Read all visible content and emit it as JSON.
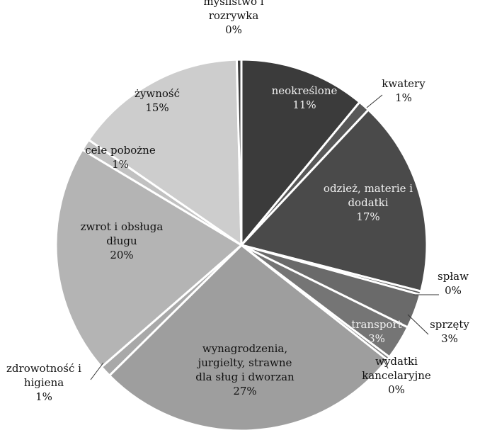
{
  "chart_data": {
    "type": "pie",
    "title": "",
    "legend": "none",
    "slices": [
      {
        "name": "neokreślone",
        "label_lines": [
          "neokreślone"
        ],
        "value": 11,
        "value_label": "11%",
        "color": "#3b3b3b",
        "text_tone": "light"
      },
      {
        "name": "kwatery",
        "label_lines": [
          "kwatery"
        ],
        "value": 1,
        "value_label": "1%",
        "color": "#585858",
        "text_tone": "dark"
      },
      {
        "name": "odzież, materie i dodatki",
        "label_lines": [
          "odzież, materie i",
          "dodatki"
        ],
        "value": 17,
        "value_label": "17%",
        "color": "#4a4a4a",
        "text_tone": "light"
      },
      {
        "name": "spław",
        "label_lines": [
          "spław"
        ],
        "value": 0.3,
        "value_label": "0%",
        "color": "#5e5e5e",
        "text_tone": "dark"
      },
      {
        "name": "sprzęty",
        "label_lines": [
          "sprzęty"
        ],
        "value": 3,
        "value_label": "3%",
        "color": "#6a6a6a",
        "text_tone": "dark"
      },
      {
        "name": "transport",
        "label_lines": [
          "transport"
        ],
        "value": 3,
        "value_label": "3%",
        "color": "#757575",
        "text_tone": "light"
      },
      {
        "name": "wydatki kancelaryjne",
        "label_lines": [
          "wydatki",
          "kancelaryjne"
        ],
        "value": 0.3,
        "value_label": "0%",
        "color": "#7f7f7f",
        "text_tone": "dark"
      },
      {
        "name": "wynagrodzenia, jurgielty, strawne dla sług i dworzan",
        "label_lines": [
          "wynagrodzenia,",
          "jurgielty,  strawne",
          "dla sług i dworzan"
        ],
        "value": 27,
        "value_label": "27%",
        "color": "#9e9e9e",
        "text_tone": "dark"
      },
      {
        "name": "zdrowotność i higiena",
        "label_lines": [
          "zdrowotność i",
          "higiena"
        ],
        "value": 1,
        "value_label": "1%",
        "color": "#a8a8a8",
        "text_tone": "dark"
      },
      {
        "name": "zwrot i obsługa długu",
        "label_lines": [
          "zwrot i obsługa",
          "długu"
        ],
        "value": 20,
        "value_label": "20%",
        "color": "#b4b4b4",
        "text_tone": "dark"
      },
      {
        "name": "cele pobożne",
        "label_lines": [
          "cele pobożne"
        ],
        "value": 1,
        "value_label": "1%",
        "color": "#c1c1c1",
        "text_tone": "dark"
      },
      {
        "name": "żywność",
        "label_lines": [
          "żywność"
        ],
        "value": 15,
        "value_label": "15%",
        "color": "#cdcdcd",
        "text_tone": "dark"
      },
      {
        "name": "myślistwo i rozrywka",
        "label_lines": [
          "myślistwo i",
          "rozrywka"
        ],
        "value": 0.4,
        "value_label": "0%",
        "color": "#3b3b3b",
        "text_tone": "dark"
      }
    ]
  }
}
